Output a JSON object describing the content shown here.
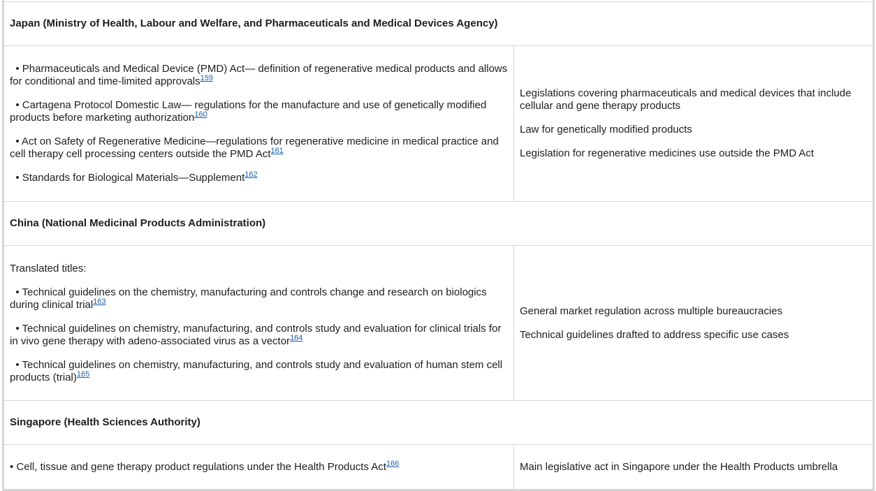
{
  "sections": [
    {
      "heading": "Japan (Ministry of Health, Labour and Welfare, and Pharmaceuticals and Medical Devices Agency)",
      "intro": "",
      "items": [
        {
          "text": "  • Pharmaceuticals and Medical Device (PMD) Act— definition of regenerative medical products and allows for conditional and time-limited approvals",
          "ref": "159"
        },
        {
          "text": "  • Cartagena Protocol Domestic Law— regulations for the manufacture and use of genetically modified products before marketing authorization",
          "ref": "160"
        },
        {
          "text": "  • Act on Safety of Regenerative Medicine—regulations for regenerative medicine in medical practice and cell therapy cell processing centers outside the PMD Act",
          "ref": "161"
        },
        {
          "text": "  • Standards for Biological Materials—Supplement",
          "ref": "162"
        }
      ],
      "notes": [
        "Legislations covering pharmaceuticals and medical devices that include cellular and gene therapy products",
        "Law for genetically modified products",
        "Legislation for regenerative medicines use outside the PMD Act"
      ]
    },
    {
      "heading": "China (National Medicinal Products Administration)",
      "intro": "Translated titles:",
      "items": [
        {
          "text": "  • Technical guidelines on the chemistry, manufacturing and controls change and research on biologics during clinical trial",
          "ref": "163"
        },
        {
          "text": "  • Technical guidelines on chemistry, manufacturing, and controls study and evaluation for clinical trials for in vivo gene therapy with adeno-associated virus as a vector",
          "ref": "164"
        },
        {
          "text": "  • Technical guidelines on chemistry, manufacturing, and controls study and evaluation of human stem cell products (trial)",
          "ref": "165"
        }
      ],
      "notes": [
        "General market regulation across multiple bureaucracies",
        "Technical guidelines drafted to address specific use cases"
      ]
    },
    {
      "heading": "Singapore (Health Sciences Authority)",
      "intro": "",
      "items": [
        {
          "text": "• Cell, tissue and gene therapy product regulations under the Health Products Act",
          "ref": "166"
        }
      ],
      "notes": [
        "Main legislative act in Singapore under the Health Products umbrella"
      ]
    }
  ]
}
